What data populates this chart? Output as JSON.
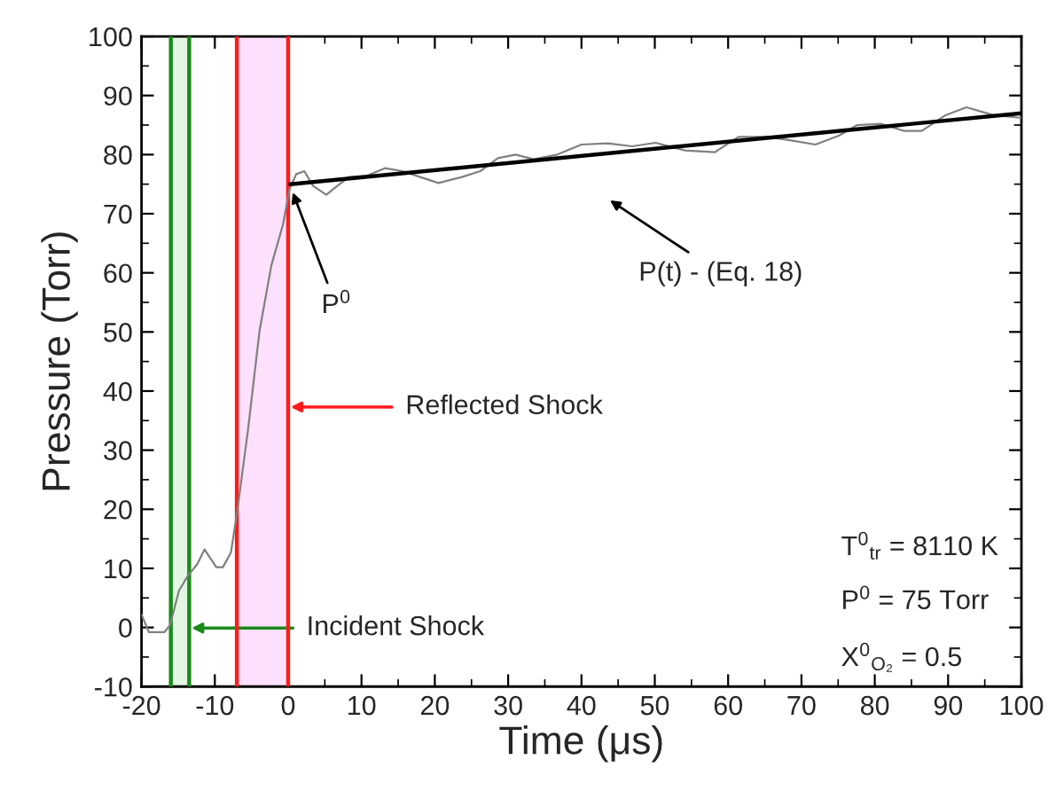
{
  "chart_data": {
    "type": "line",
    "xlabel": "Time (μs)",
    "ylabel": "Pressure (Torr)",
    "xlim": [
      -20,
      100
    ],
    "ylim": [
      -10,
      100
    ],
    "xticks": [
      -20,
      -10,
      0,
      10,
      20,
      30,
      40,
      50,
      60,
      70,
      80,
      90,
      100
    ],
    "yticks": [
      -10,
      0,
      10,
      20,
      30,
      40,
      50,
      60,
      70,
      80,
      90,
      100
    ],
    "grid": false,
    "legend": false,
    "series": [
      {
        "color": "#808080",
        "x": [
          -20,
          -19,
          -16.9,
          -16.1,
          -14.9,
          -13.7,
          -12.4,
          -11.4,
          -10.6,
          -9.8,
          -8.9,
          -7.8,
          -7,
          -5.5,
          -3.9,
          -2.3,
          -0.7,
          0.2,
          1.1,
          2.2,
          3.4,
          5.2,
          6.7,
          8.3,
          10.7,
          13.2,
          15.6,
          18,
          20.5,
          23.7,
          26.2,
          28.6,
          31,
          33.5,
          36.7,
          40,
          43.6,
          46.9,
          50.1,
          54.1,
          58.2,
          61.4,
          65.4,
          68.6,
          71.9,
          75.1,
          77.6,
          80.8,
          84,
          86.4,
          89.7,
          92.5,
          96.1,
          100
        ],
        "values": [
          2.2,
          -0.8,
          -0.8,
          0.4,
          6.2,
          8.7,
          10.7,
          13.2,
          11.7,
          10.2,
          10.2,
          12.7,
          19.2,
          33.2,
          50.2,
          61.2,
          68.2,
          74.2,
          76.7,
          77.2,
          74.7,
          73.2,
          74.7,
          76.2,
          76.4,
          77.7,
          77.2,
          76.2,
          75.2,
          76.2,
          77.2,
          79.4,
          80,
          79.2,
          80,
          81.7,
          81.9,
          81.4,
          82,
          80.7,
          80.4,
          83,
          83,
          82.4,
          81.7,
          83.2,
          85,
          85.2,
          84,
          84,
          86.7,
          88,
          86.7,
          86.2
        ]
      },
      {
        "color": "#000000",
        "x": [
          0.3,
          100
        ],
        "values": [
          75,
          87
        ]
      }
    ],
    "bands": [
      {
        "axis": "x",
        "from": -16,
        "to": -13.5,
        "color": "#e3f6e3"
      },
      {
        "axis": "x",
        "from": -7,
        "to": 0,
        "color": "#fde0fb"
      }
    ],
    "ref_lines": [
      {
        "axis": "x",
        "value": -16,
        "color": "#1a8a1a"
      },
      {
        "axis": "x",
        "value": -13.5,
        "label": "Incident Shock",
        "color": "#1a8a1a"
      },
      {
        "axis": "x",
        "value": -7,
        "color": "#ff1a1a"
      },
      {
        "axis": "x",
        "value": 0,
        "label": "Reflected Shock",
        "color": "#ff1a1a"
      }
    ],
    "annotations": [
      {
        "text": "P$^{0}$",
        "x": 0.5,
        "y": 74
      },
      "P(t) - (Eq. 18)",
      "T$^{0}$$_{tr}$ = 8110 K",
      "P$^{0}$ = 75 Torr",
      "X$^{0}$$_{O₂}$ = 0.5"
    ]
  }
}
